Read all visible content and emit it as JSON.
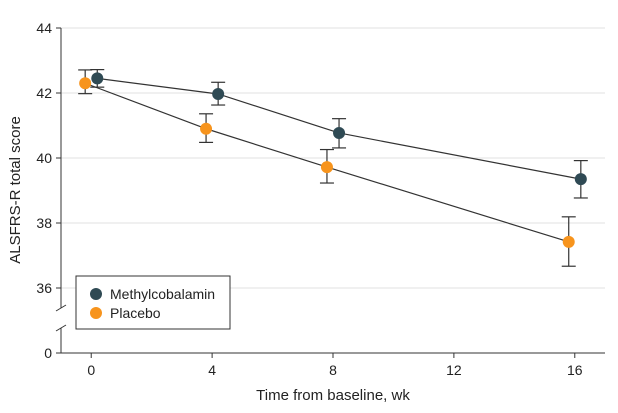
{
  "chart_data": {
    "type": "line",
    "title": "",
    "xlabel": "Time from baseline, wk",
    "ylabel": "ALSFRS-R total score",
    "x": [
      0,
      4,
      8,
      16
    ],
    "xticks": [
      0,
      4,
      8,
      12,
      16
    ],
    "xlim": [
      -1,
      17
    ],
    "yticks": [
      0,
      36,
      38,
      40,
      42,
      44
    ],
    "ytick_labels": [
      "0",
      "36",
      "38",
      "40",
      "42",
      "44"
    ],
    "ylim": [
      34,
      44
    ],
    "axis_break": true,
    "grid": true,
    "legend_position": "bottom-left",
    "series": [
      {
        "name": "Methylcobalamin",
        "color": "#2f4a54",
        "x_offset": 0.2,
        "values": [
          42.45,
          41.97,
          40.77,
          39.35
        ],
        "ci_low": [
          42.18,
          41.63,
          40.31,
          38.77
        ],
        "ci_high": [
          42.72,
          42.33,
          41.21,
          39.92
        ]
      },
      {
        "name": "Placebo",
        "color": "#f7941d",
        "x_offset": -0.2,
        "values": [
          42.3,
          40.9,
          39.72,
          37.42
        ],
        "ci_low": [
          41.98,
          40.48,
          39.23,
          36.67
        ],
        "ci_high": [
          42.71,
          41.36,
          40.26,
          38.19
        ]
      }
    ]
  }
}
